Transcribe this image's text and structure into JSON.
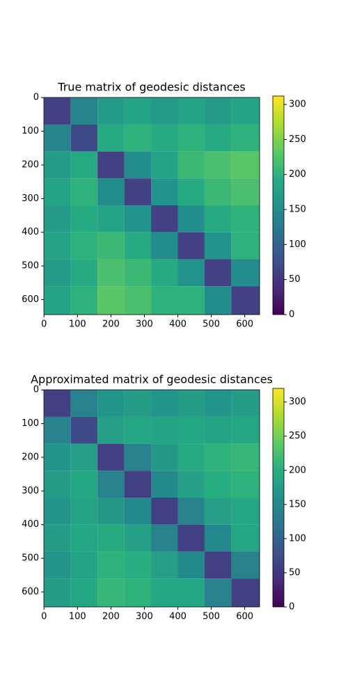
{
  "chart_data": [
    {
      "type": "heatmap",
      "title": "True matrix of geodesic distances",
      "colormap": "viridis",
      "xlim": [
        -0.5,
        644.5
      ],
      "ylim": [
        644.5,
        -0.5
      ],
      "xticks": [
        0,
        100,
        200,
        300,
        400,
        500,
        600
      ],
      "yticks": [
        0,
        100,
        200,
        300,
        400,
        500,
        600
      ],
      "xbins": [
        0,
        80,
        160,
        240,
        320,
        400,
        480,
        560,
        645
      ],
      "ybins": [
        0,
        80,
        160,
        240,
        320,
        400,
        480,
        560,
        645
      ],
      "values": [
        [
          60,
          140,
          170,
          180,
          170,
          180,
          170,
          180
        ],
        [
          140,
          70,
          190,
          200,
          190,
          200,
          190,
          200
        ],
        [
          170,
          190,
          60,
          150,
          180,
          210,
          220,
          230
        ],
        [
          180,
          200,
          150,
          60,
          160,
          190,
          210,
          220
        ],
        [
          170,
          190,
          180,
          160,
          60,
          150,
          190,
          200
        ],
        [
          180,
          200,
          210,
          190,
          150,
          60,
          160,
          200
        ],
        [
          170,
          190,
          220,
          210,
          190,
          160,
          60,
          150
        ],
        [
          180,
          200,
          230,
          220,
          200,
          200,
          150,
          60
        ]
      ],
      "clim": [
        0,
        312
      ],
      "cticks": [
        0,
        50,
        100,
        150,
        200,
        250,
        300
      ]
    },
    {
      "type": "heatmap",
      "title": "Approximated matrix of geodesic distances",
      "colormap": "viridis",
      "xlim": [
        -0.5,
        644.5
      ],
      "ylim": [
        644.5,
        -0.5
      ],
      "xticks": [
        0,
        100,
        200,
        300,
        400,
        500,
        600
      ],
      "yticks": [
        0,
        100,
        200,
        300,
        400,
        500,
        600
      ],
      "xbins": [
        0,
        80,
        160,
        240,
        320,
        400,
        480,
        560,
        645
      ],
      "ybins": [
        0,
        80,
        160,
        240,
        320,
        400,
        480,
        560,
        645
      ],
      "values": [
        [
          60,
          140,
          165,
          175,
          165,
          175,
          165,
          175
        ],
        [
          140,
          70,
          180,
          190,
          185,
          190,
          185,
          190
        ],
        [
          165,
          180,
          60,
          140,
          170,
          195,
          205,
          210
        ],
        [
          175,
          190,
          140,
          60,
          150,
          180,
          200,
          205
        ],
        [
          165,
          185,
          170,
          150,
          60,
          140,
          180,
          190
        ],
        [
          175,
          190,
          195,
          180,
          140,
          60,
          150,
          190
        ],
        [
          165,
          185,
          205,
          200,
          180,
          150,
          60,
          140
        ],
        [
          175,
          190,
          210,
          205,
          190,
          190,
          140,
          60
        ]
      ],
      "clim": [
        0,
        320
      ],
      "cticks": [
        0,
        50,
        100,
        150,
        200,
        250,
        300
      ]
    }
  ]
}
